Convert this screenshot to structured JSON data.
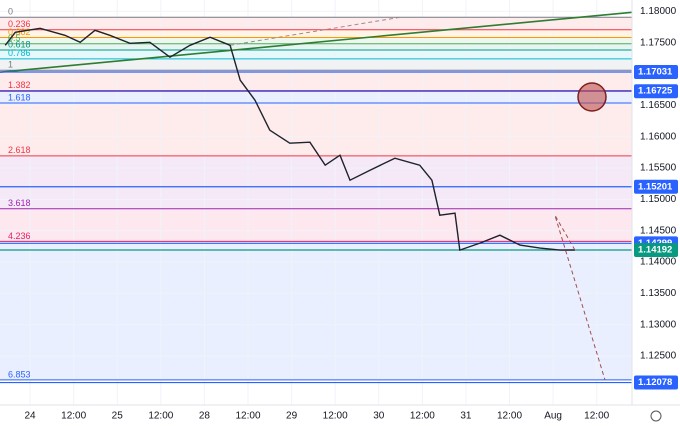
{
  "chart_data": {
    "type": "line",
    "x": [
      -0.57,
      -0.34,
      0.23,
      0.8,
      1.15,
      1.49,
      1.83,
      2.29,
      2.75,
      3.21,
      3.67,
      4.13,
      4.59,
      4.82,
      5.16,
      5.5,
      5.96,
      6.42,
      6.77,
      7.11,
      7.34,
      7.8,
      8.37,
      8.94,
      9.22,
      9.4,
      9.75,
      9.86,
      10.32,
      10.78,
      11.24,
      11.7,
      12.16,
      12.5
    ],
    "values": [
      1.17458,
      1.17665,
      1.17729,
      1.17617,
      1.17506,
      1.17697,
      1.17617,
      1.1749,
      1.17506,
      1.17267,
      1.17458,
      1.17586,
      1.17458,
      1.169,
      1.16581,
      1.16103,
      1.15896,
      1.15912,
      1.15545,
      1.15704,
      1.15306,
      1.15465,
      1.15657,
      1.15545,
      1.15306,
      1.14748,
      1.1478,
      1.1419,
      1.14302,
      1.14429,
      1.1427,
      1.14222,
      1.1419,
      1.14192
    ],
    "color": "#1e222d",
    "xlim": [
      -0.69,
      13.81
    ],
    "ylim": [
      1.1172,
      1.1818
    ],
    "grid": true,
    "xticks": [
      {
        "value": 0,
        "label": "24"
      },
      {
        "value": 1,
        "label": "12:00"
      },
      {
        "value": 2,
        "label": "25"
      },
      {
        "value": 3,
        "label": "12:00"
      },
      {
        "value": 4,
        "label": "28"
      },
      {
        "value": 5,
        "label": "12:00"
      },
      {
        "value": 6,
        "label": "29"
      },
      {
        "value": 7,
        "label": "12:00"
      },
      {
        "value": 8,
        "label": "30"
      },
      {
        "value": 9,
        "label": "12:00"
      },
      {
        "value": 10,
        "label": "31"
      },
      {
        "value": 11,
        "label": "12:00"
      },
      {
        "value": 12,
        "label": "Aug"
      },
      {
        "value": 13,
        "label": "12:00"
      }
    ],
    "yticks": [
      {
        "value": 1.18,
        "label": "1.18000"
      },
      {
        "value": 1.175,
        "label": "1.17500"
      },
      {
        "value": 1.165,
        "label": "1.16500"
      },
      {
        "value": 1.16,
        "label": "1.16000"
      },
      {
        "value": 1.155,
        "label": "1.15500"
      },
      {
        "value": 1.15,
        "label": "1.15000"
      },
      {
        "value": 1.145,
        "label": "1.14500"
      },
      {
        "value": 1.14,
        "label": "1.14000"
      },
      {
        "value": 1.135,
        "label": "1.13500"
      },
      {
        "value": 1.13,
        "label": "1.13000"
      },
      {
        "value": 1.125,
        "label": "1.12500"
      }
    ],
    "fib_levels": [
      {
        "label": "0",
        "value": 1.17904,
        "color": "#787b86"
      },
      {
        "label": "0.236",
        "value": 1.17705,
        "color": "#f23645"
      },
      {
        "label": "0.382",
        "value": 1.17582,
        "color": "#ff9800"
      },
      {
        "label": "0.5",
        "value": 1.17482,
        "color": "#4caf50"
      },
      {
        "label": "0.618",
        "value": 1.17382,
        "color": "#089981"
      },
      {
        "label": "0.786",
        "value": 1.17241,
        "color": "#00bcd4"
      },
      {
        "label": "1",
        "value": 1.1706,
        "color": "#787b86"
      },
      {
        "label": "1.382",
        "value": 1.16737,
        "color": "#f23645"
      },
      {
        "label": "1.618",
        "value": 1.16538,
        "color": "#2962ff"
      },
      {
        "label": "2.618",
        "value": 1.15694,
        "color": "#f23645"
      },
      {
        "label": "3.618",
        "value": 1.1485,
        "color": "#9c27b0"
      },
      {
        "label": "4.236",
        "value": 1.14329,
        "color": "#e91e63"
      },
      {
        "label": "6.853",
        "value": 1.1212,
        "color": "#2962ff"
      }
    ],
    "price_lines": [
      {
        "value": 1.17031,
        "color": "#2962ff"
      },
      {
        "value": 1.16725,
        "color": "#2962ff"
      },
      {
        "value": 1.15201,
        "color": "#2962ff"
      },
      {
        "value": 1.14299,
        "color": "#2962ff"
      },
      {
        "value": 1.14192,
        "color": "#089981"
      },
      {
        "value": 1.12078,
        "color": "#2962ff"
      }
    ],
    "trend_lines": [
      {
        "x": [
          -0.69,
          13.81
        ],
        "values": [
          1.17028,
          1.17984
        ],
        "color": "#2e7d32",
        "dashed": false
      },
      {
        "x": [
          4.59,
          8.49
        ],
        "values": [
          1.17458,
          1.17904
        ],
        "color": "#a08a8a",
        "dashed": true
      }
    ],
    "projection": {
      "x": [
        12.5,
        12.04,
        13.19
      ],
      "values": [
        1.14192,
        1.14748,
        1.12118
      ],
      "color": "#a05050"
    }
  }
}
